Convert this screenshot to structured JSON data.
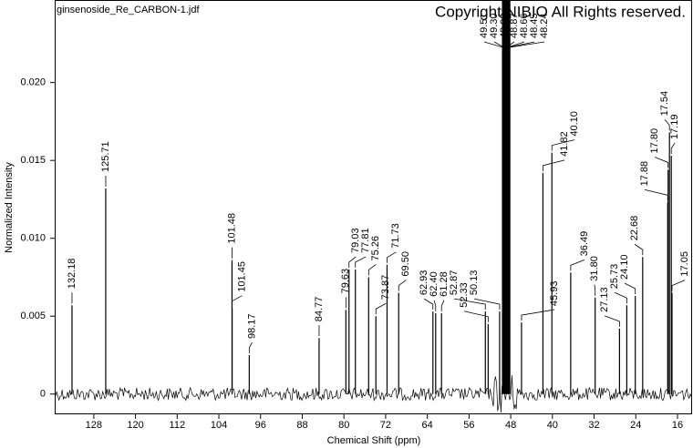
{
  "chart_data": {
    "type": "stem",
    "file_name": "ginsenoside_Re_CARBON-1.jdf",
    "copyright": "Copyright NIBIO All Rights reserved.",
    "x_label": "Chemical Shift (ppm)",
    "y_label": "Normalized Intensity",
    "x": [
      132.18,
      125.71,
      101.48,
      101.45,
      98.17,
      84.77,
      79.63,
      79.03,
      77.81,
      75.26,
      73.87,
      71.73,
      69.5,
      62.93,
      62.4,
      61.28,
      52.87,
      52.33,
      50.13,
      49.51,
      49.3,
      49.09,
      48.87,
      48.66,
      48.45,
      48.24,
      45.93,
      41.82,
      40.1,
      36.49,
      31.8,
      27.13,
      25.73,
      24.1,
      22.68,
      17.88,
      17.8,
      17.54,
      17.19,
      17.05
    ],
    "peak_labels": [
      "132.18",
      "125.71",
      "101.48",
      "101.45",
      "98.17",
      "84.77",
      "79.63",
      "79.03",
      "77.81",
      "75.26",
      "73.87",
      "71.73",
      "69.50",
      "62.93",
      "62.40",
      "61.28",
      "52.87",
      "52.33",
      "50.13",
      "49.51",
      "49.30",
      "49.09",
      "48.87",
      "48.66",
      "48.45",
      "48.24",
      "45.93",
      "41.82",
      "40.10",
      "36.49",
      "31.80",
      "27.13",
      "25.73",
      "24.10",
      "22.68",
      "17.88",
      "17.80",
      "17.54",
      "17.19",
      "17.05"
    ],
    "values": [
      0.0057,
      0.0132,
      0.0086,
      0.0055,
      0.0025,
      0.0036,
      0.0054,
      0.008,
      0.008,
      0.0075,
      0.005,
      0.0083,
      0.0065,
      0.0053,
      0.0052,
      0.0052,
      0.0053,
      0.0045,
      0.0053,
      0.026,
      0.026,
      0.026,
      0.026,
      0.026,
      0.026,
      0.026,
      0.0046,
      0.0142,
      0.0155,
      0.0078,
      0.0062,
      0.0042,
      0.0057,
      0.0063,
      0.0088,
      0.0123,
      0.0144,
      0.0168,
      0.0153,
      0.0065
    ],
    "color": "#000000",
    "xlim": [
      135.5,
      13.2
    ],
    "ylim": [
      -0.0013,
      0.0253
    ],
    "xticks": [
      128,
      120,
      112,
      104,
      96,
      88,
      80,
      72,
      64,
      56,
      48,
      40,
      32,
      24,
      16
    ],
    "yticks": [
      0,
      0.005,
      {
        "value": 0.01,
        "label": "0.010"
      },
      {
        "value": 0.015,
        "label": "0.015"
      },
      {
        "value": 0.02,
        "label": "0.020"
      }
    ]
  }
}
